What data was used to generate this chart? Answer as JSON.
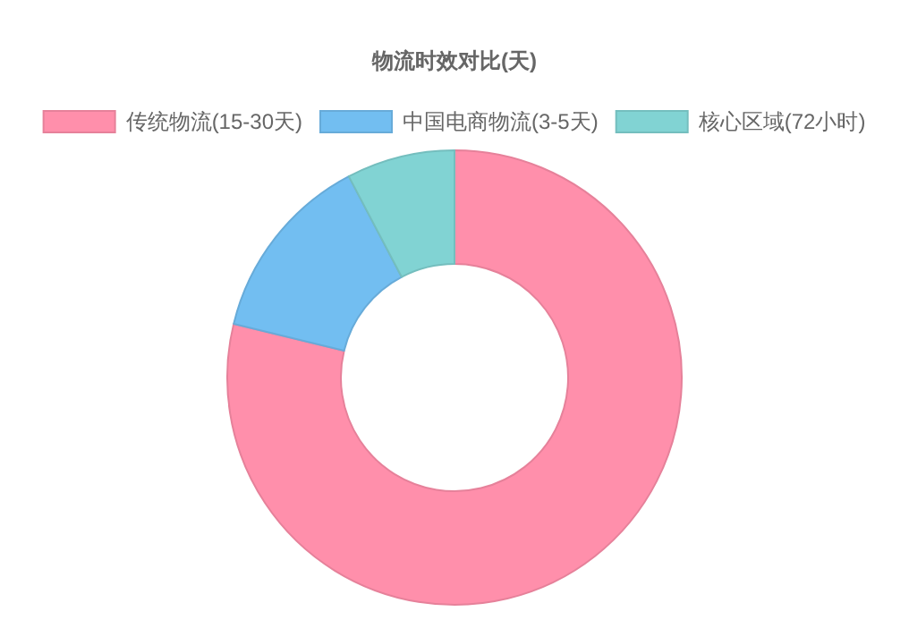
{
  "chart_data": {
    "type": "donut",
    "title": "物流时效对比(天)",
    "categories": [
      "传统物流(15-30天)",
      "中国电商物流(3-5天)",
      "核心区域(72小时)"
    ],
    "values": [
      78.8,
      13.5,
      7.7
    ],
    "colors": [
      "#ff8fab",
      "#72bef1",
      "#81d3d3"
    ],
    "legend": "top"
  }
}
